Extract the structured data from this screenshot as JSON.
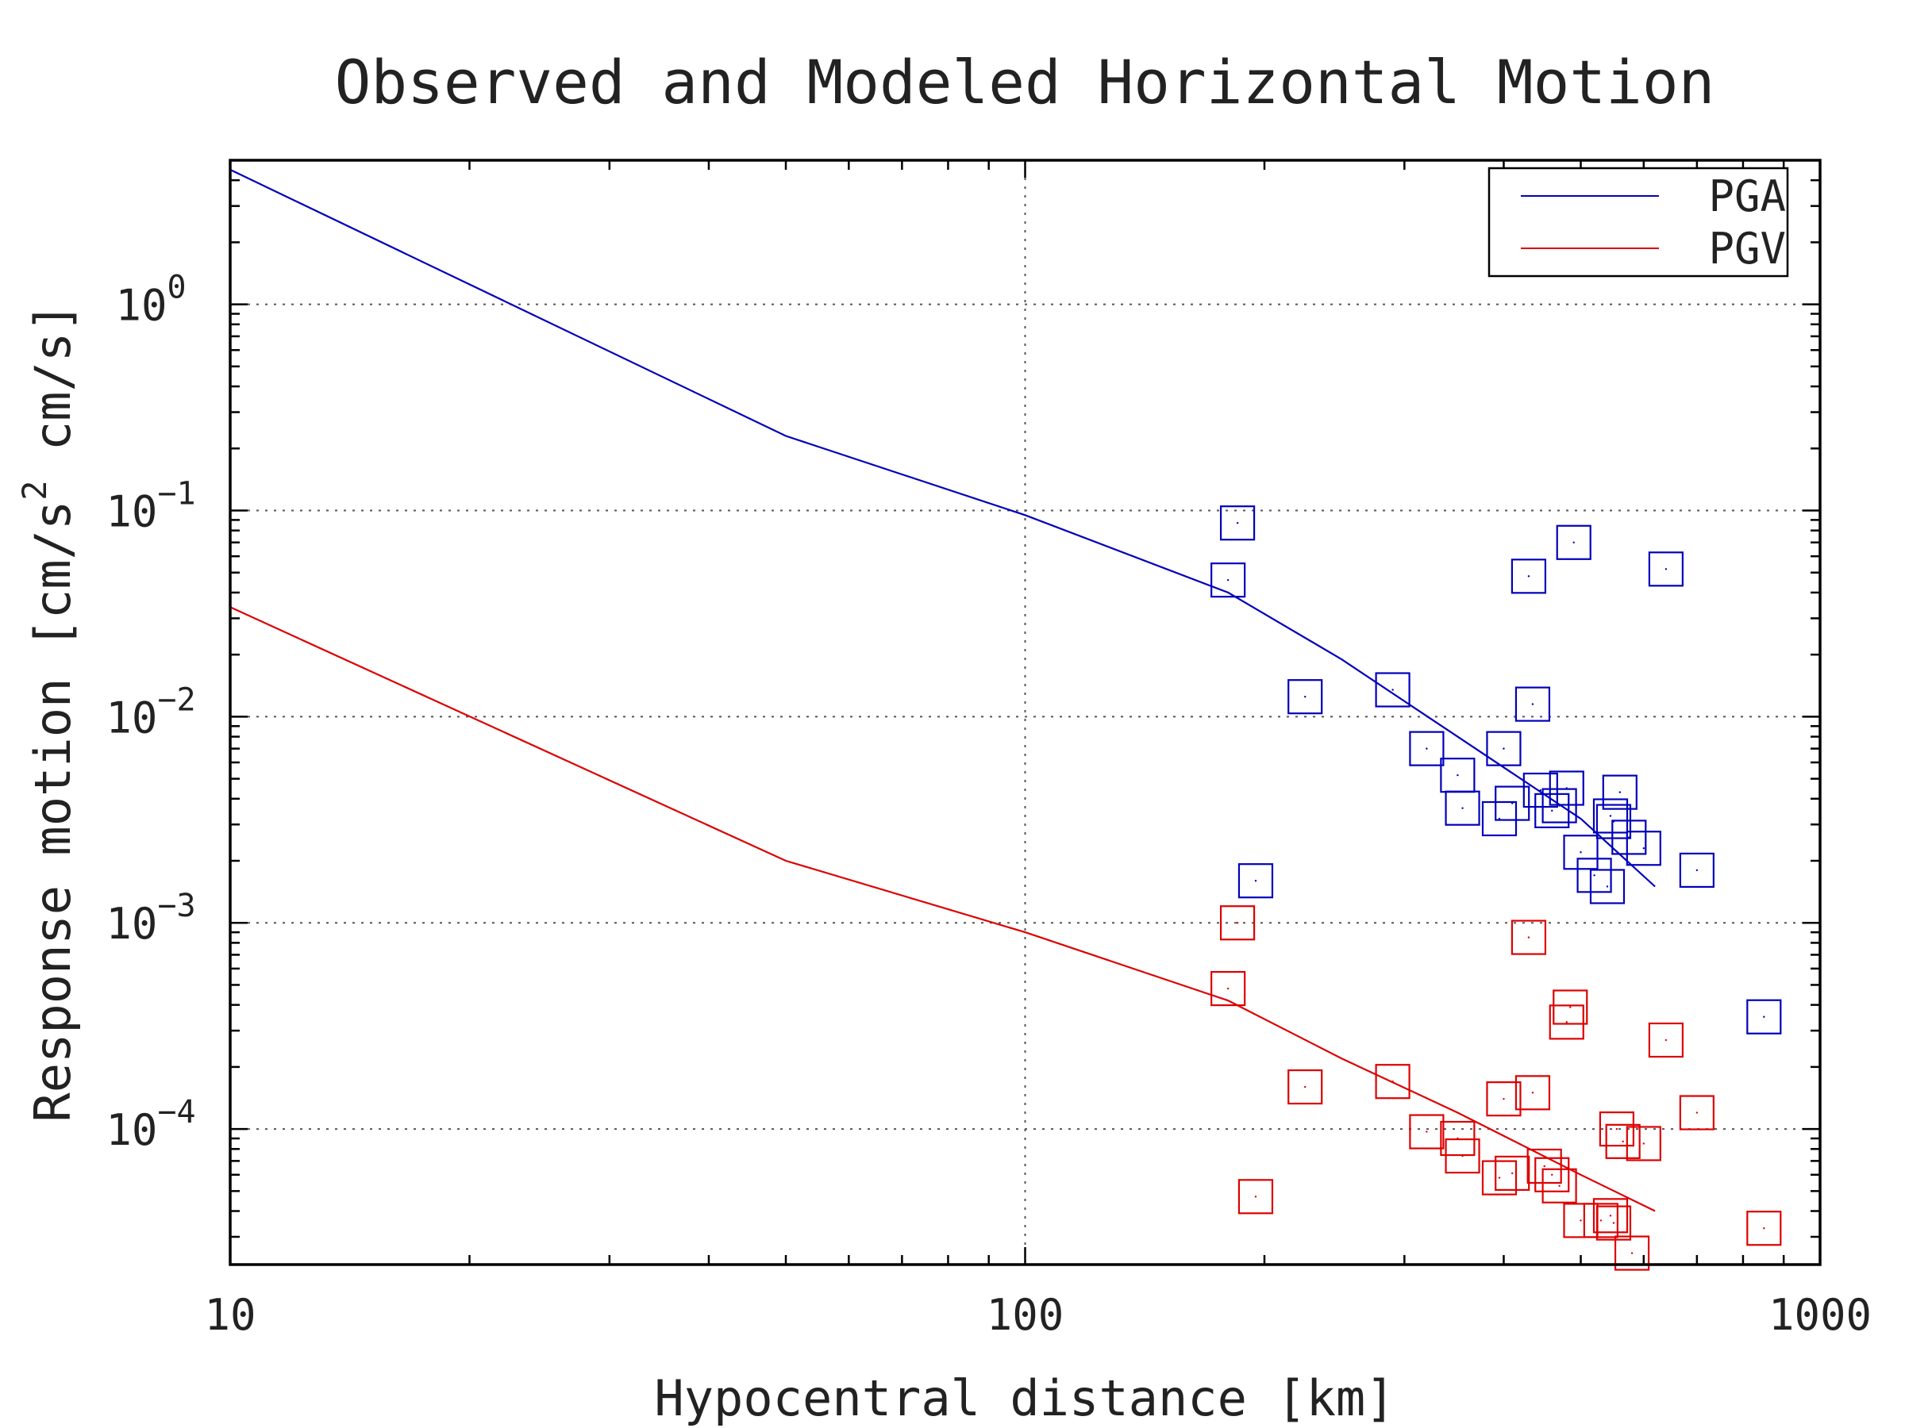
{
  "chart_data": {
    "type": "scatter",
    "title": "Observed and Modeled Horizontal Motion",
    "xlabel": "Hypocentral distance [km]",
    "ylabel_main": "Response motion [cm/s",
    "ylabel_sup": "2",
    "ylabel_end": " cm/s]",
    "xscale": "log",
    "yscale": "log",
    "xlim": [
      10,
      1000
    ],
    "ylim": [
      2.2e-05,
      5
    ],
    "grid": true,
    "legend_position": "top-right",
    "x_ticks": [
      {
        "value": 10,
        "label": "10"
      },
      {
        "value": 100,
        "label": "100"
      },
      {
        "value": 1000,
        "label": "1000"
      }
    ],
    "y_ticks": [
      {
        "value": 1,
        "base": "10",
        "exp": "0"
      },
      {
        "value": 0.1,
        "base": "10",
        "exp": "−1"
      },
      {
        "value": 0.01,
        "base": "10",
        "exp": "−2"
      },
      {
        "value": 0.001,
        "base": "10",
        "exp": "−3"
      },
      {
        "value": 0.0001,
        "base": "10",
        "exp": "−4"
      }
    ],
    "series": [
      {
        "name": "PGA",
        "color": "#0000bb",
        "line": [
          [
            10,
            4.5
          ],
          [
            50,
            0.23
          ],
          [
            100,
            0.095
          ],
          [
            180,
            0.04
          ],
          [
            250,
            0.019
          ],
          [
            350,
            0.008
          ],
          [
            500,
            0.0032
          ],
          [
            620,
            0.0015
          ]
        ],
        "points": [
          [
            185,
            0.087
          ],
          [
            180,
            0.046
          ],
          [
            225,
            0.0125
          ],
          [
            290,
            0.0135
          ],
          [
            320,
            0.007
          ],
          [
            350,
            0.0052
          ],
          [
            355,
            0.0036
          ],
          [
            400,
            0.007
          ],
          [
            395,
            0.0032
          ],
          [
            410,
            0.0038
          ],
          [
            430,
            0.048
          ],
          [
            435,
            0.0115
          ],
          [
            445,
            0.0044
          ],
          [
            460,
            0.0035
          ],
          [
            470,
            0.0037
          ],
          [
            480,
            0.0045
          ],
          [
            490,
            0.07
          ],
          [
            500,
            0.0022
          ],
          [
            520,
            0.0017
          ],
          [
            540,
            0.0015
          ],
          [
            545,
            0.0033
          ],
          [
            550,
            0.0031
          ],
          [
            560,
            0.0043
          ],
          [
            575,
            0.0026
          ],
          [
            600,
            0.0023
          ],
          [
            640,
            0.052
          ],
          [
            700,
            0.0018
          ],
          [
            195,
            0.0016
          ],
          [
            850,
            0.00035
          ]
        ]
      },
      {
        "name": "PGV",
        "color": "#dd0000",
        "line": [
          [
            10,
            0.034
          ],
          [
            50,
            0.002
          ],
          [
            100,
            0.0009
          ],
          [
            180,
            0.00042
          ],
          [
            250,
            0.00022
          ],
          [
            350,
            0.00012
          ],
          [
            500,
            6e-05
          ],
          [
            620,
            4e-05
          ]
        ],
        "points": [
          [
            185,
            0.001
          ],
          [
            180,
            0.00048
          ],
          [
            225,
            0.00016
          ],
          [
            195,
            4.7e-05
          ],
          [
            290,
            0.00017
          ],
          [
            320,
            9.7e-05
          ],
          [
            350,
            9e-05
          ],
          [
            355,
            7.4e-05
          ],
          [
            395,
            5.8e-05
          ],
          [
            400,
            0.00014
          ],
          [
            410,
            6.1e-05
          ],
          [
            430,
            0.00085
          ],
          [
            435,
            0.00015
          ],
          [
            450,
            6.6e-05
          ],
          [
            460,
            6e-05
          ],
          [
            470,
            5.3e-05
          ],
          [
            480,
            0.00033
          ],
          [
            485,
            0.00039
          ],
          [
            500,
            3.6e-05
          ],
          [
            530,
            3.6e-05
          ],
          [
            545,
            3.8e-05
          ],
          [
            550,
            3.5e-05
          ],
          [
            555,
            0.0001
          ],
          [
            565,
            8.7e-05
          ],
          [
            580,
            2.5e-05
          ],
          [
            600,
            8.5e-05
          ],
          [
            640,
            0.00027
          ],
          [
            700,
            0.00012
          ],
          [
            850,
            3.3e-05
          ]
        ]
      }
    ]
  }
}
